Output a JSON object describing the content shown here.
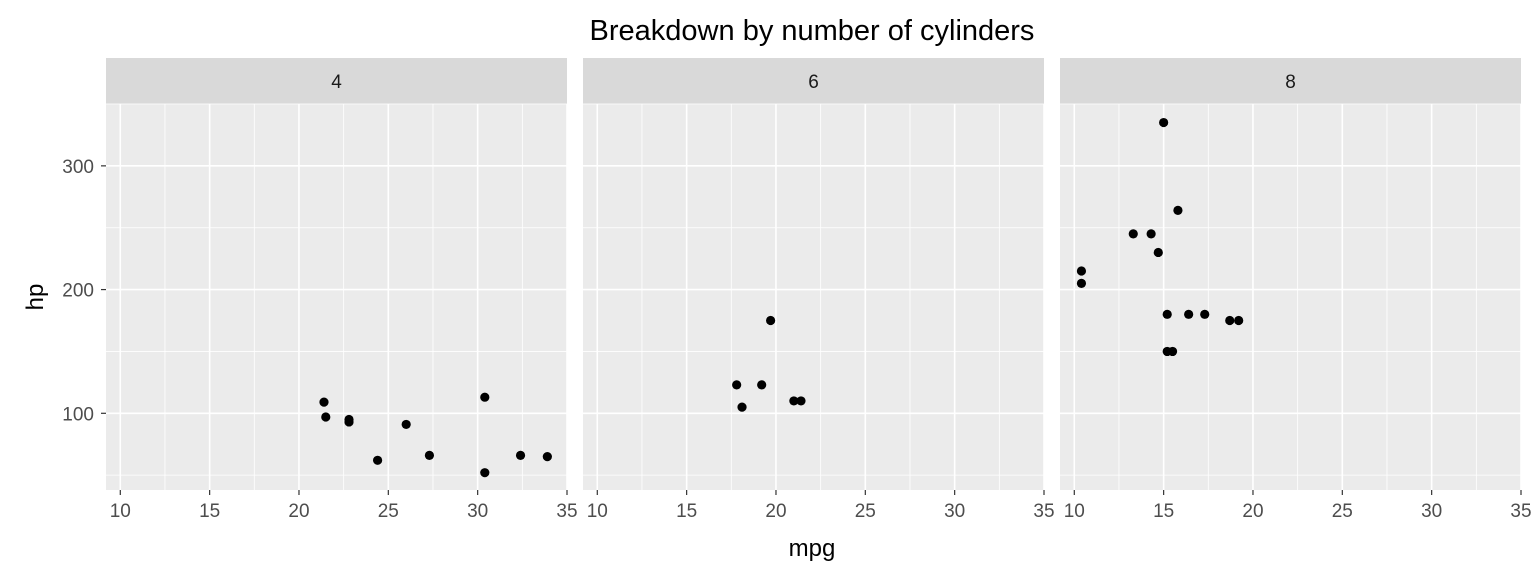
{
  "chart_data": {
    "type": "scatter",
    "title": "Breakdown by number of cylinders",
    "xlabel": "mpg",
    "ylabel": "hp",
    "xlim": [
      9.2,
      35.0
    ],
    "ylim": [
      38,
      350
    ],
    "x_ticks": [
      10,
      15,
      20,
      25,
      30,
      35
    ],
    "y_ticks": [
      100,
      200,
      300
    ],
    "grid": true,
    "colors": {
      "panel_bg": "#ebebeb",
      "strip_bg": "#d9d9d9",
      "grid": "#ffffff",
      "point": "#000000",
      "tick": "#333333"
    },
    "facets": [
      {
        "label": "4",
        "points": [
          {
            "x": 21.4,
            "y": 109
          },
          {
            "x": 21.5,
            "y": 97
          },
          {
            "x": 22.8,
            "y": 95
          },
          {
            "x": 22.8,
            "y": 93
          },
          {
            "x": 24.4,
            "y": 62
          },
          {
            "x": 26.0,
            "y": 91
          },
          {
            "x": 27.3,
            "y": 66
          },
          {
            "x": 30.4,
            "y": 113
          },
          {
            "x": 30.4,
            "y": 52
          },
          {
            "x": 32.4,
            "y": 66
          },
          {
            "x": 33.9,
            "y": 65
          }
        ]
      },
      {
        "label": "6",
        "points": [
          {
            "x": 17.8,
            "y": 123
          },
          {
            "x": 18.1,
            "y": 105
          },
          {
            "x": 19.2,
            "y": 123
          },
          {
            "x": 19.7,
            "y": 175
          },
          {
            "x": 21.0,
            "y": 110
          },
          {
            "x": 21.4,
            "y": 110
          }
        ]
      },
      {
        "label": "8",
        "points": [
          {
            "x": 10.4,
            "y": 215
          },
          {
            "x": 10.4,
            "y": 205
          },
          {
            "x": 13.3,
            "y": 245
          },
          {
            "x": 14.3,
            "y": 245
          },
          {
            "x": 14.7,
            "y": 230
          },
          {
            "x": 15.0,
            "y": 335
          },
          {
            "x": 15.2,
            "y": 180
          },
          {
            "x": 15.2,
            "y": 150
          },
          {
            "x": 15.5,
            "y": 150
          },
          {
            "x": 15.8,
            "y": 264
          },
          {
            "x": 16.4,
            "y": 180
          },
          {
            "x": 17.3,
            "y": 180
          },
          {
            "x": 18.7,
            "y": 175
          },
          {
            "x": 19.2,
            "y": 175
          }
        ]
      }
    ]
  }
}
